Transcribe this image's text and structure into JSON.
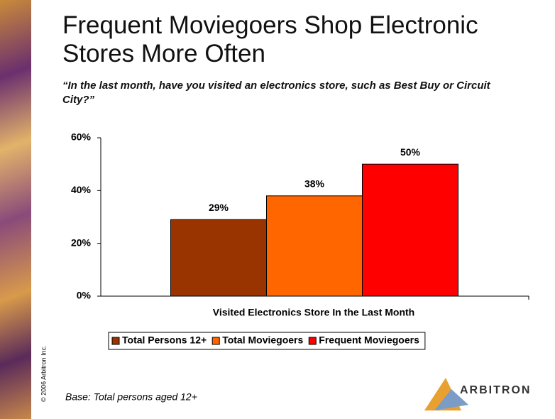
{
  "chart_data": {
    "type": "bar",
    "title": "Frequent Moviegoers Shop Electronic Stores More Often",
    "subtitle": "“In the last month, have you visited an electronics store, such as Best Buy or Circuit City?”",
    "categories": [
      "Visited Electronics Store In the Last Month"
    ],
    "series": [
      {
        "name": "Total Persons 12+",
        "color": "#993300",
        "values": [
          29
        ],
        "value_labels": [
          "29%"
        ]
      },
      {
        "name": "Total Moviegoers",
        "color": "#ff6600",
        "values": [
          38
        ],
        "value_labels": [
          "38%"
        ]
      },
      {
        "name": "Frequent Moviegoers",
        "color": "#ff0000",
        "values": [
          50
        ],
        "value_labels": [
          "50%"
        ]
      }
    ],
    "ylim": [
      0,
      60
    ],
    "yticks": [
      {
        "value": 0,
        "label": "0%"
      },
      {
        "value": 20,
        "label": "20%"
      },
      {
        "value": 40,
        "label": "40%"
      },
      {
        "value": 60,
        "label": "60%"
      }
    ],
    "legend": "bottom",
    "note": "Base:  Total persons aged 12+",
    "copyright": "© 2006 Arbitron Inc.",
    "logo": "ARBITRON"
  }
}
